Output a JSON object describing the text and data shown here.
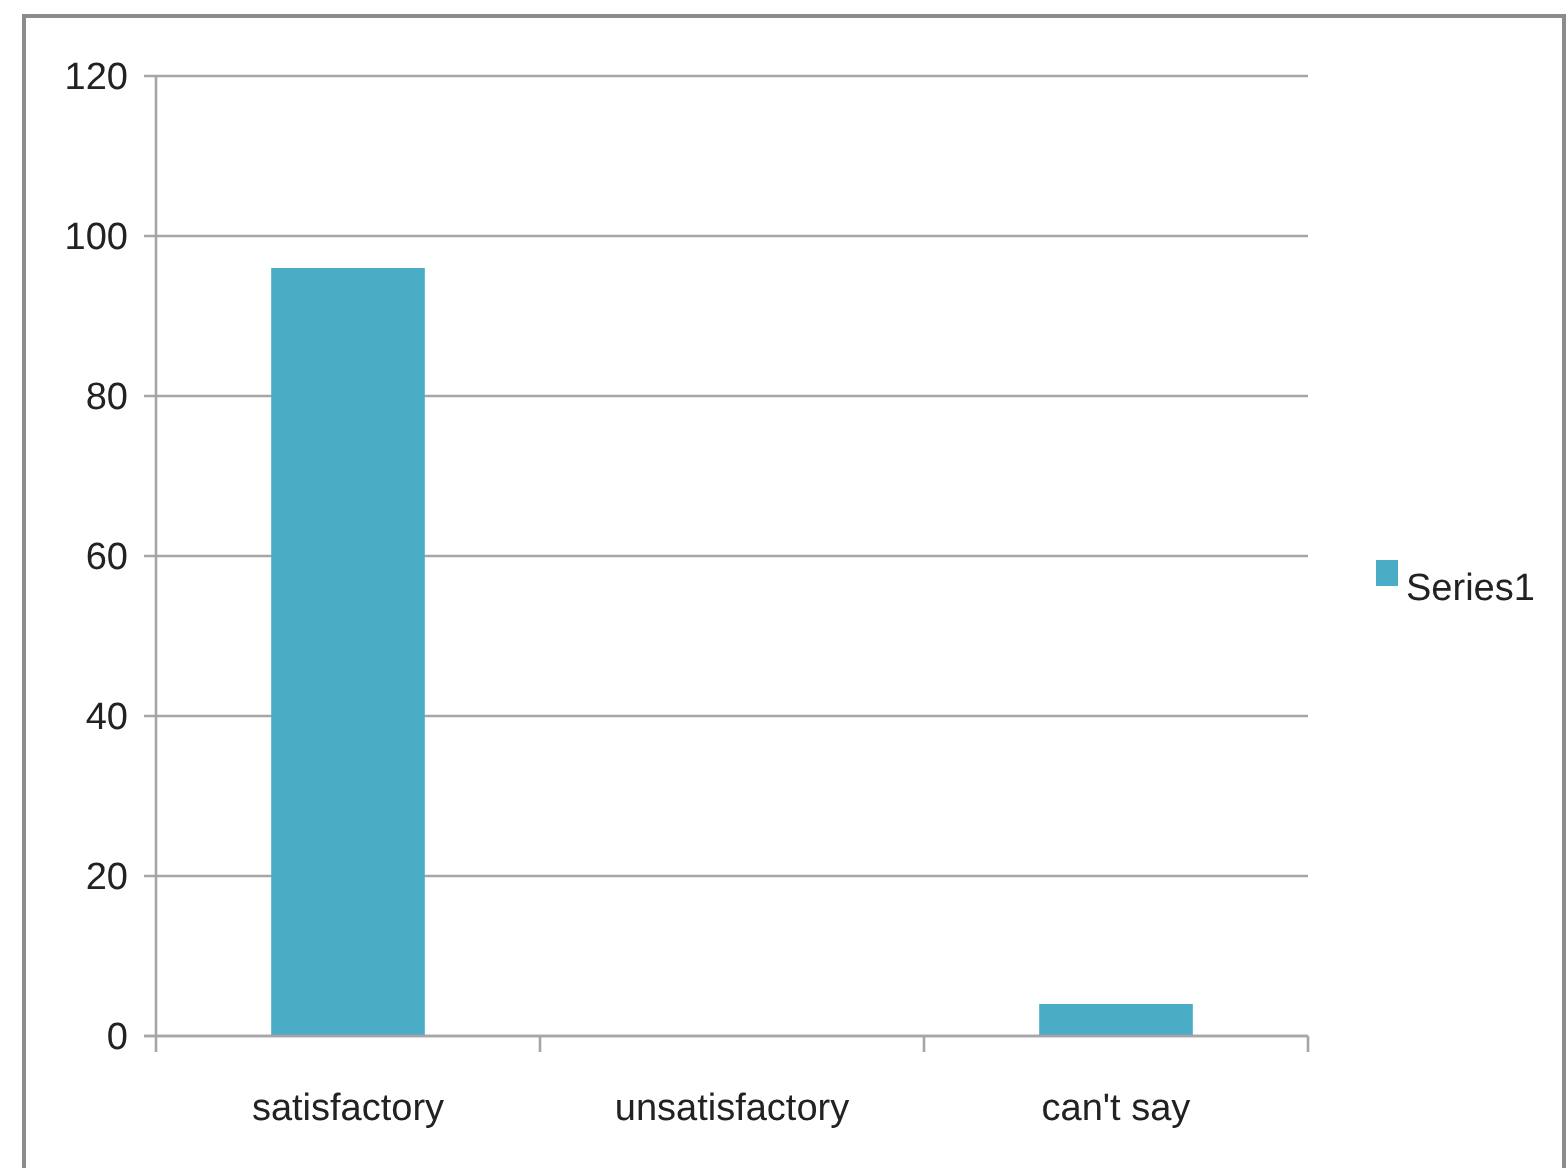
{
  "chart_data": {
    "type": "bar",
    "categories": [
      "satisfactory",
      "unsatisfactory",
      "can't say"
    ],
    "series": [
      {
        "name": "Series1",
        "color": "#4bacc6",
        "values": [
          96,
          0,
          4
        ]
      }
    ],
    "ylim": [
      0,
      120
    ],
    "yticks": [
      0,
      20,
      40,
      60,
      80,
      100,
      120
    ],
    "grid": "y",
    "legend": "right"
  }
}
